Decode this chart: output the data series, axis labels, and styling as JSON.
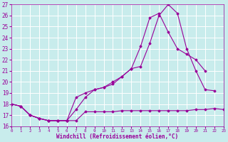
{
  "xlabel": "Windchill (Refroidissement éolien,°C)",
  "bg_color": "#c8ecec",
  "line_color": "#990099",
  "grid_color": "#ffffff",
  "ylim": [
    16,
    27
  ],
  "xlim": [
    0,
    23
  ],
  "yticks": [
    16,
    17,
    18,
    19,
    20,
    21,
    22,
    23,
    24,
    25,
    26,
    27
  ],
  "xticks": [
    0,
    1,
    2,
    3,
    4,
    5,
    6,
    7,
    8,
    9,
    10,
    11,
    12,
    13,
    14,
    15,
    16,
    17,
    18,
    19,
    20,
    21,
    22,
    23
  ],
  "line1_x": [
    0,
    1,
    2,
    3,
    4,
    5,
    6,
    7,
    8,
    9,
    10,
    11,
    12,
    13,
    14,
    15,
    16,
    17,
    18,
    19,
    20,
    21,
    22,
    23
  ],
  "line1_y": [
    18.0,
    17.8,
    17.0,
    16.7,
    16.5,
    16.5,
    16.5,
    16.5,
    17.3,
    17.3,
    17.3,
    17.3,
    17.4,
    17.4,
    17.4,
    17.4,
    17.4,
    17.4,
    17.4,
    17.4,
    17.5,
    17.5,
    17.6,
    17.5
  ],
  "line2_x": [
    0,
    1,
    2,
    3,
    4,
    5,
    6,
    7,
    8,
    9,
    10,
    11,
    12,
    13,
    14,
    15,
    16,
    17,
    18,
    19,
    20,
    21,
    22
  ],
  "line2_y": [
    18.0,
    17.8,
    17.0,
    16.7,
    16.5,
    16.5,
    16.5,
    18.6,
    19.0,
    19.3,
    19.5,
    20.0,
    20.5,
    21.2,
    21.4,
    23.5,
    26.0,
    27.0,
    26.2,
    23.0,
    21.0,
    19.3,
    19.2
  ],
  "line3_x": [
    0,
    1,
    2,
    3,
    4,
    5,
    6,
    7,
    8,
    9,
    10,
    11,
    12,
    13,
    14,
    15,
    16,
    17,
    18,
    19,
    20,
    21,
    22,
    23
  ],
  "line3_y": [
    18.0,
    17.8,
    17.0,
    16.7,
    16.5,
    16.5,
    16.5,
    17.5,
    18.6,
    19.3,
    19.5,
    19.8,
    20.5,
    21.2,
    23.2,
    25.8,
    26.2,
    24.5,
    23.0,
    22.5,
    22.0,
    21.0,
    null,
    null
  ]
}
